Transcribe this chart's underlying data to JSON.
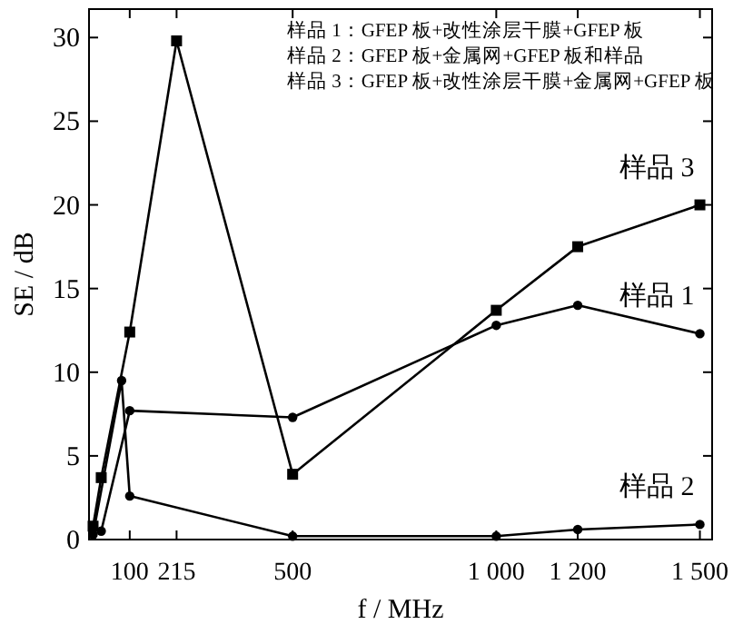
{
  "chart_data": {
    "type": "line",
    "xlabel": "f / MHz",
    "ylabel": "SE / dB",
    "xlim": [
      0,
      1530
    ],
    "ylim": [
      0,
      31.7
    ],
    "xticks": [
      100,
      215,
      500,
      {
        "value": 1000,
        "label": "1 000"
      },
      {
        "value": 1200,
        "label": "1 200"
      },
      {
        "value": 1500,
        "label": "1 500"
      }
    ],
    "yticks": [
      0,
      5,
      10,
      15,
      20,
      25,
      30
    ],
    "grid": false,
    "legend": "right",
    "series": [
      {
        "name": "样品 1",
        "color": "#000000",
        "marker": "circle",
        "x": [
          30,
          100,
          500,
          1000,
          1200,
          1500
        ],
        "values": [
          0.5,
          7.7,
          7.3,
          12.8,
          14.0,
          12.3
        ]
      },
      {
        "name": "样品 2",
        "color": "#000000",
        "marker": "circle",
        "x": [
          10,
          80,
          100,
          500,
          1000,
          1200,
          1500
        ],
        "values": [
          0.3,
          9.5,
          2.6,
          0.2,
          0.2,
          0.6,
          0.9
        ]
      },
      {
        "name": "样品 3",
        "color": "#000000",
        "marker": "square",
        "x": [
          10,
          30,
          100,
          215,
          500,
          1000,
          1200,
          1500
        ],
        "values": [
          0.8,
          3.7,
          12.4,
          29.8,
          3.9,
          13.7,
          17.5,
          20.0
        ]
      }
    ],
    "annotations": [
      "样品 1：GFEP 板+改性涂层干膜+GFEP 板",
      "样品 2：GFEP 板+金属网+GFEP 板和样品",
      "样品 3：GFEP 板+改性涂层干膜+金属网+GFEP 板"
    ]
  }
}
